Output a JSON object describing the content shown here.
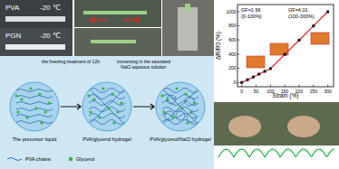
{
  "photos": {
    "pva_label": "PVA",
    "pva_temp": "-20 ℃",
    "pgn_label": "PGN",
    "pgn_temp": "-20 ℃"
  },
  "schematic": {
    "stages": [
      {
        "label": "The precursor liquid"
      },
      {
        "label": "PVA/glycerol hydrogel"
      },
      {
        "label": "PVA/glycerol/NaCl hydrogel"
      }
    ],
    "steps": [
      "the freezing treatment of 12h",
      "immersing in the saturated NaCl aqueous solution"
    ],
    "legend": [
      {
        "label": "PVA chains"
      },
      {
        "label": "Glycerol"
      }
    ]
  },
  "chart_data": {
    "type": "line",
    "x_label": "Strain (%)",
    "y_label": "ΔR/R0 (%)",
    "annotations": [
      "GF=1.96",
      "(0-100%)",
      "GF=4.01",
      "(100-300%)"
    ],
    "x": [
      0,
      20,
      40,
      60,
      80,
      100,
      150,
      200,
      250,
      300
    ],
    "series": [
      {
        "color": "#e02424",
        "marker": "square",
        "values": [
          0,
          39,
          78,
          118,
          157,
          196,
          397,
          597,
          798,
          998
        ]
      }
    ],
    "xlim": [
      -15,
      320
    ],
    "ylim": [
      -60,
      1100
    ],
    "xticks": [
      0,
      50,
      100,
      150,
      200,
      250,
      300
    ],
    "yticks": [
      0,
      200,
      400,
      600,
      800,
      1000
    ]
  }
}
